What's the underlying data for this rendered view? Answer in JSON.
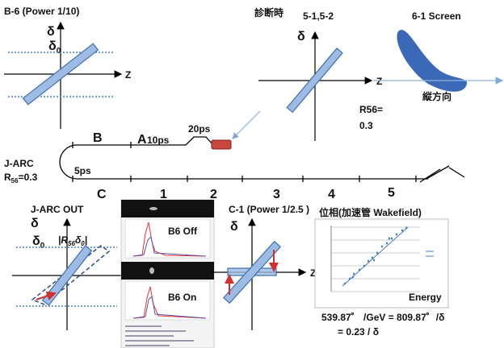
{
  "b6": {
    "title": "B-6 (Power 1/10)",
    "delta": "δ",
    "delta0": "δ",
    "delta0_sub": "0",
    "z": "Z"
  },
  "diag": {
    "note": "診断時",
    "title": "5-1,5-2",
    "delta": "δ",
    "z": "Z"
  },
  "screen": {
    "title": "6-1  Screen",
    "caption": "縦方向",
    "r56_label": "R56=",
    "r56_value": "0.3"
  },
  "beamline": {
    "arc": "J-ARC",
    "r56_r": "R",
    "r56_sub": "56",
    "r56_rest": "=0.3",
    "t5": "5ps",
    "sec_b": "B",
    "sec_a": "A",
    "t10": "10ps",
    "t20": "20ps",
    "sections": [
      "C",
      "1",
      "2",
      "3",
      "4",
      "5"
    ]
  },
  "arc_out": {
    "title": "J-ARC OUT",
    "delta": "δ",
    "delta0": "δ",
    "delta0_sub": "0",
    "r_open": "|R",
    "r_sub": "56",
    "r_delta": "δ",
    "r_delta_sub": "0",
    "r_close": "|"
  },
  "images": {
    "off": "B6 Off",
    "on": "B6 On"
  },
  "c1": {
    "title": "C-1 (Power 1/2.5 )",
    "delta": "δ",
    "z": "Z"
  },
  "graph": {
    "title": "位相(加速管 Wakefield)",
    "xlabel": "Energy",
    "formula1": "539.87゜ /GeV = 809.87゜/δ",
    "formula2": "= 0.23 / δ"
  }
}
